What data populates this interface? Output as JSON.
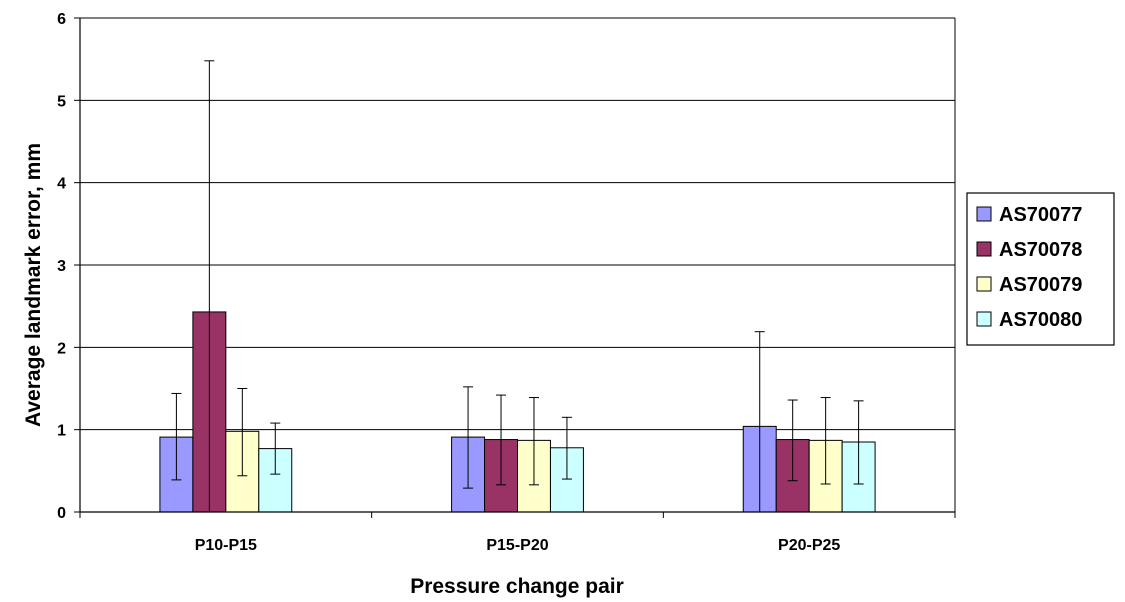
{
  "chart_data": {
    "type": "bar",
    "title": "",
    "xlabel": "Pressure change pair",
    "ylabel": "Average landmark error, mm",
    "categories": [
      "P10-P15",
      "P15-P20",
      "P20-P25"
    ],
    "ylim": [
      0,
      6
    ],
    "yticks": [
      0,
      1,
      2,
      3,
      4,
      5,
      6
    ],
    "grid": true,
    "legend_position": "right",
    "series": [
      {
        "name": "AS70077",
        "color": "#9999ff",
        "values": [
          0.91,
          0.91,
          1.04
        ],
        "error_low": [
          0.39,
          0.29,
          0.0
        ],
        "error_high": [
          1.44,
          1.52,
          2.19
        ]
      },
      {
        "name": "AS70078",
        "color": "#993366",
        "values": [
          2.43,
          0.88,
          0.88
        ],
        "error_low": [
          0.0,
          0.33,
          0.38
        ],
        "error_high": [
          5.48,
          1.42,
          1.36
        ]
      },
      {
        "name": "AS70079",
        "color": "#ffffcc",
        "values": [
          0.98,
          0.87,
          0.87
        ],
        "error_low": [
          0.44,
          0.33,
          0.34
        ],
        "error_high": [
          1.5,
          1.39,
          1.39
        ]
      },
      {
        "name": "AS70080",
        "color": "#ccffff",
        "values": [
          0.77,
          0.78,
          0.85
        ],
        "error_low": [
          0.46,
          0.4,
          0.34
        ],
        "error_high": [
          1.08,
          1.15,
          1.35
        ]
      }
    ]
  }
}
